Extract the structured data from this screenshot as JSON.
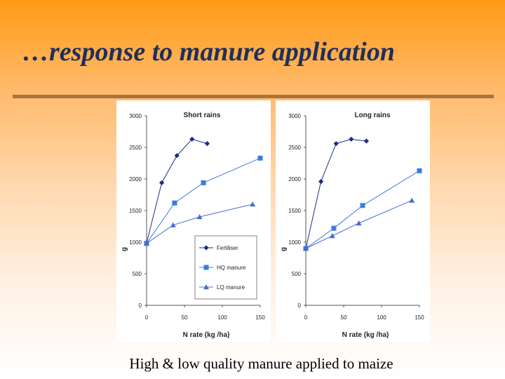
{
  "slide": {
    "title": "…response to manure application",
    "caption": "High & low quality manure applied to maize"
  },
  "colors": {
    "fertiliser": "#1a2b8c",
    "hq_manure": "#3a7be0",
    "lq_manure": "#4a6cd0"
  },
  "chart_data": [
    {
      "type": "line",
      "title": "Short rains",
      "xlabel": "N rate (kg /ha)",
      "ylabel": "g",
      "xlim": [
        0,
        150
      ],
      "ylim": [
        0,
        3000
      ],
      "xticks": [
        0,
        50,
        100,
        150
      ],
      "yticks": [
        0,
        500,
        1000,
        1500,
        2000,
        2500,
        3000
      ],
      "grid": false,
      "legend": "bottom-right",
      "series": [
        {
          "name": "Fertiliser",
          "marker": "diamond",
          "color": "#1a2b8c",
          "x": [
            0,
            20,
            40,
            60,
            80
          ],
          "y": [
            990,
            1940,
            2370,
            2630,
            2560
          ]
        },
        {
          "name": "HQ manure",
          "marker": "square",
          "color": "#3a7be0",
          "x": [
            0,
            37,
            75,
            150
          ],
          "y": [
            980,
            1620,
            1940,
            2330
          ]
        },
        {
          "name": "LQ manure",
          "marker": "triangle",
          "color": "#4a6cd0",
          "x": [
            0,
            35,
            70,
            140
          ],
          "y": [
            980,
            1270,
            1400,
            1600
          ]
        }
      ]
    },
    {
      "type": "line",
      "title": "Long rains",
      "xlabel": "N rate (kg /ha)",
      "ylabel": "g",
      "xlim": [
        0,
        150
      ],
      "ylim": [
        0,
        3000
      ],
      "xticks": [
        0,
        50,
        100,
        150
      ],
      "yticks": [
        0,
        500,
        1000,
        1500,
        2000,
        2500,
        3000
      ],
      "grid": false,
      "legend": "",
      "series": [
        {
          "name": "Fertiliser",
          "marker": "diamond",
          "color": "#1a2b8c",
          "x": [
            0,
            20,
            40,
            60,
            80
          ],
          "y": [
            900,
            1960,
            2560,
            2630,
            2600
          ]
        },
        {
          "name": "HQ manure",
          "marker": "square",
          "color": "#3a7be0",
          "x": [
            0,
            37,
            75,
            150
          ],
          "y": [
            900,
            1220,
            1580,
            2130
          ]
        },
        {
          "name": "LQ manure",
          "marker": "triangle",
          "color": "#4a6cd0",
          "x": [
            0,
            35,
            70,
            140
          ],
          "y": [
            900,
            1100,
            1300,
            1660
          ]
        }
      ]
    }
  ]
}
